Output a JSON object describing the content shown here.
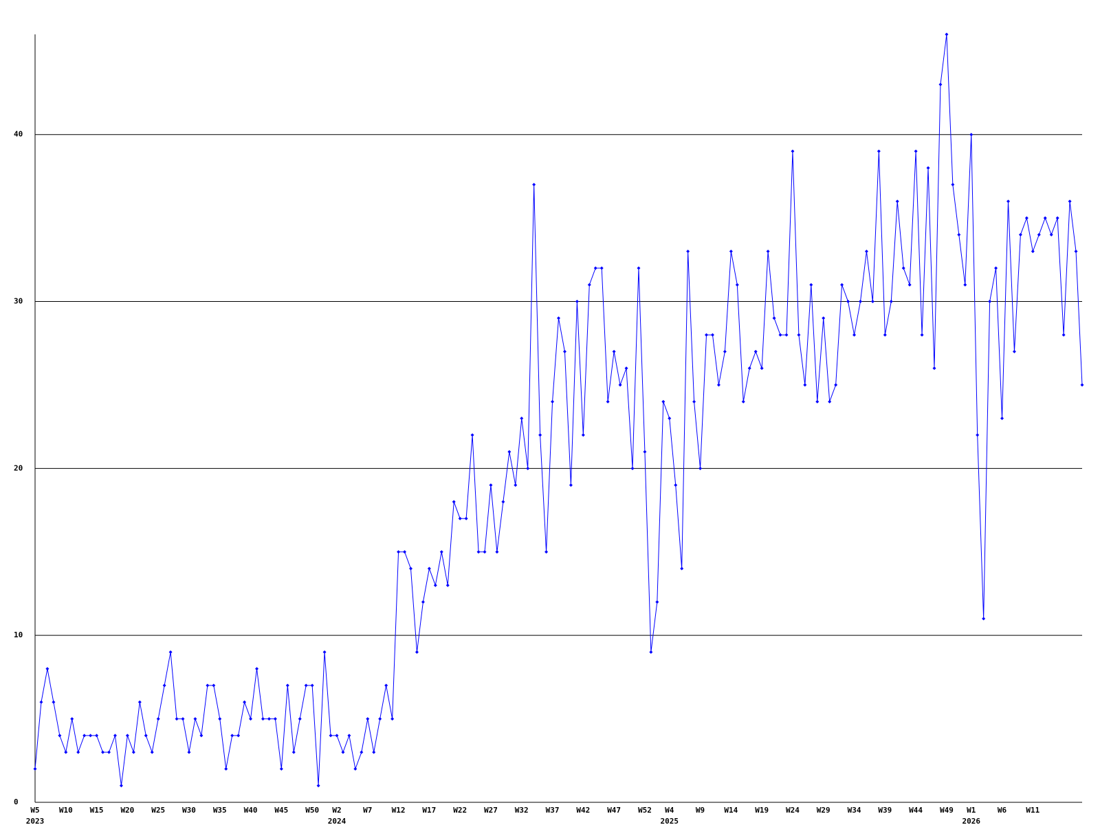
{
  "chart_data": {
    "type": "line",
    "categories": [
      "W5",
      null,
      null,
      null,
      null,
      "W10",
      null,
      null,
      null,
      null,
      "W15",
      null,
      null,
      null,
      null,
      "W20",
      null,
      null,
      null,
      null,
      "W25",
      null,
      null,
      null,
      null,
      "W30",
      null,
      null,
      null,
      null,
      "W35",
      null,
      null,
      null,
      null,
      "W40",
      null,
      null,
      null,
      null,
      "W45",
      null,
      null,
      null,
      null,
      "W50",
      null,
      null,
      null,
      "W2",
      null,
      null,
      null,
      null,
      "W7",
      null,
      null,
      null,
      null,
      "W12",
      null,
      null,
      null,
      null,
      "W17",
      null,
      null,
      null,
      null,
      "W22",
      null,
      null,
      null,
      null,
      "W27",
      null,
      null,
      null,
      null,
      "W32",
      null,
      null,
      null,
      null,
      "W37",
      null,
      null,
      null,
      null,
      "W42",
      null,
      null,
      null,
      null,
      "W47",
      null,
      null,
      null,
      null,
      "W52",
      null,
      null,
      null,
      "W4",
      null,
      null,
      null,
      null,
      "W9",
      null,
      null,
      null,
      null,
      "W14",
      null,
      null,
      null,
      null,
      "W19",
      null,
      null,
      null,
      null,
      "W24",
      null,
      null,
      null,
      null,
      "W29",
      null,
      null,
      null,
      null,
      "W34",
      null,
      null,
      null,
      null,
      "W39",
      null,
      null,
      null,
      null,
      "W44",
      null,
      null,
      null,
      null,
      "W49",
      null,
      null,
      null,
      "W1",
      null,
      null,
      null,
      null,
      "W6",
      null,
      null,
      null,
      null,
      "W11",
      null,
      null,
      null,
      null,
      null,
      null,
      null,
      null
    ],
    "category_years": [
      "2023",
      null,
      null,
      null,
      null,
      null,
      null,
      null,
      null,
      null,
      null,
      null,
      null,
      null,
      null,
      null,
      null,
      null,
      null,
      null,
      null,
      null,
      null,
      null,
      null,
      null,
      null,
      null,
      null,
      null,
      null,
      null,
      null,
      null,
      null,
      null,
      null,
      null,
      null,
      null,
      null,
      null,
      null,
      null,
      null,
      null,
      null,
      null,
      null,
      "2024",
      null,
      null,
      null,
      null,
      null,
      null,
      null,
      null,
      null,
      null,
      null,
      null,
      null,
      null,
      null,
      null,
      null,
      null,
      null,
      null,
      null,
      null,
      null,
      null,
      null,
      null,
      null,
      null,
      null,
      null,
      null,
      null,
      null,
      null,
      null,
      null,
      null,
      null,
      null,
      null,
      null,
      null,
      null,
      null,
      null,
      null,
      null,
      null,
      null,
      null,
      null,
      null,
      null,
      "2025",
      null,
      null,
      null,
      null,
      null,
      null,
      null,
      null,
      null,
      null,
      null,
      null,
      null,
      null,
      null,
      null,
      null,
      null,
      null,
      null,
      null,
      null,
      null,
      null,
      null,
      null,
      null,
      null,
      null,
      null,
      null,
      null,
      null,
      null,
      null,
      null,
      null,
      null,
      null,
      null,
      null,
      null,
      null,
      null,
      null,
      null,
      null,
      null,
      "2026",
      null,
      null,
      null,
      null,
      null,
      null,
      null,
      null,
      null,
      null,
      null,
      null,
      null,
      null,
      null,
      null,
      null,
      null
    ],
    "values": [
      2,
      6,
      8,
      6,
      4,
      3,
      5,
      3,
      4,
      4,
      4,
      3,
      3,
      4,
      1,
      4,
      3,
      6,
      4,
      3,
      5,
      7,
      9,
      5,
      5,
      3,
      5,
      4,
      7,
      7,
      5,
      2,
      4,
      4,
      6,
      5,
      8,
      5,
      5,
      5,
      2,
      7,
      3,
      5,
      7,
      7,
      1,
      9,
      4,
      4,
      3,
      4,
      2,
      3,
      5,
      3,
      5,
      7,
      5,
      15,
      15,
      14,
      9,
      12,
      14,
      13,
      15,
      13,
      18,
      17,
      17,
      22,
      15,
      15,
      19,
      15,
      18,
      21,
      19,
      23,
      20,
      37,
      22,
      15,
      24,
      29,
      27,
      19,
      30,
      22,
      31,
      32,
      32,
      24,
      27,
      25,
      26,
      20,
      32,
      21,
      9,
      12,
      24,
      23,
      19,
      14,
      33,
      24,
      20,
      28,
      28,
      25,
      27,
      33,
      31,
      24,
      26,
      27,
      26,
      33,
      29,
      28,
      28,
      39,
      28,
      25,
      31,
      24,
      29,
      24,
      25,
      31,
      30,
      28,
      30,
      33,
      30,
      39,
      28,
      30,
      36,
      32,
      31,
      39,
      28,
      38,
      26,
      43,
      46,
      37,
      34,
      31,
      40,
      22,
      11,
      30,
      32,
      23,
      36,
      27,
      34,
      35,
      33,
      34,
      35,
      34,
      35,
      28,
      36,
      33,
      25
    ],
    "color": "#0000ff",
    "ylim": [
      0,
      46
    ],
    "yticks": [
      0,
      10,
      20,
      30,
      40
    ],
    "grid": true
  }
}
